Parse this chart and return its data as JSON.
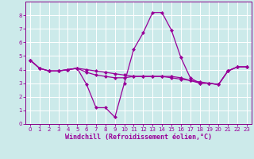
{
  "xlabel": "Windchill (Refroidissement éolien,°C)",
  "bg_color": "#cceaea",
  "grid_color": "#ffffff",
  "line_color": "#990099",
  "xlim": [
    -0.5,
    23.5
  ],
  "ylim": [
    0,
    9
  ],
  "xticks": [
    0,
    1,
    2,
    3,
    4,
    5,
    6,
    7,
    8,
    9,
    10,
    11,
    12,
    13,
    14,
    15,
    16,
    17,
    18,
    19,
    20,
    21,
    22,
    23
  ],
  "yticks": [
    0,
    1,
    2,
    3,
    4,
    5,
    6,
    7,
    8
  ],
  "series1_x": [
    0,
    1,
    2,
    3,
    4,
    5,
    6,
    7,
    8,
    9,
    10,
    11,
    12,
    13,
    14,
    15,
    16,
    17,
    18,
    19,
    20,
    21,
    22,
    23
  ],
  "series1_y": [
    4.7,
    4.1,
    3.9,
    3.9,
    4.0,
    4.1,
    2.9,
    1.2,
    1.2,
    0.5,
    3.0,
    5.5,
    6.7,
    8.2,
    8.2,
    6.9,
    4.9,
    3.4,
    3.0,
    3.0,
    2.9,
    3.9,
    4.2,
    4.2
  ],
  "series2_x": [
    0,
    1,
    2,
    3,
    4,
    5,
    6,
    7,
    8,
    9,
    10,
    11,
    12,
    13,
    14,
    15,
    16,
    17,
    18,
    19,
    20,
    21,
    22,
    23
  ],
  "series2_y": [
    4.7,
    4.1,
    3.9,
    3.9,
    4.0,
    4.1,
    3.8,
    3.6,
    3.5,
    3.4,
    3.4,
    3.5,
    3.5,
    3.5,
    3.5,
    3.5,
    3.4,
    3.2,
    3.0,
    3.0,
    2.9,
    3.9,
    4.2,
    4.2
  ],
  "series3_x": [
    0,
    1,
    2,
    3,
    4,
    5,
    6,
    7,
    8,
    9,
    10,
    11,
    12,
    13,
    14,
    15,
    16,
    17,
    18,
    19,
    20,
    21,
    22,
    23
  ],
  "series3_y": [
    4.7,
    4.1,
    3.9,
    3.9,
    4.0,
    4.1,
    4.0,
    3.9,
    3.8,
    3.7,
    3.6,
    3.5,
    3.5,
    3.5,
    3.5,
    3.4,
    3.3,
    3.2,
    3.1,
    3.0,
    2.9,
    3.9,
    4.2,
    4.2
  ],
  "marker": "D",
  "marker_size": 2,
  "linewidth": 0.9,
  "tick_fontsize": 5,
  "label_fontsize": 6,
  "spine_color": "#880088"
}
